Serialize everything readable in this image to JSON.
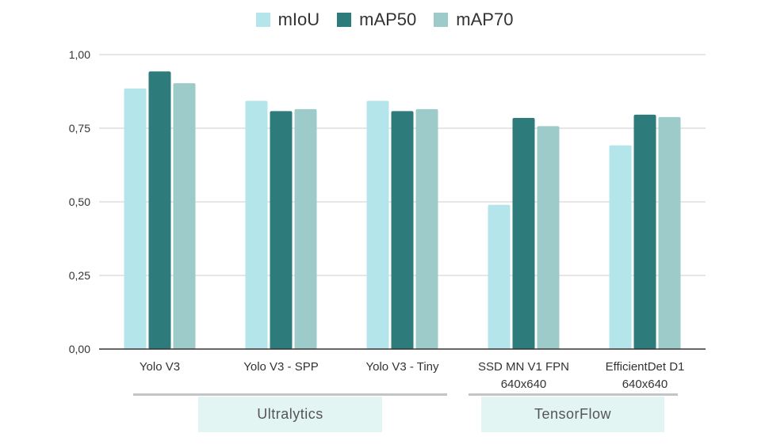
{
  "chart_data": {
    "type": "bar",
    "categories": [
      [
        "Yolo V3"
      ],
      [
        "Yolo V3 - SPP"
      ],
      [
        "Yolo V3 - Tiny"
      ],
      [
        "SSD MN V1 FPN",
        "640x640"
      ],
      [
        "EfficientDet D1",
        "640x640"
      ]
    ],
    "series": [
      {
        "name": "mIoU",
        "color": "#b3e5eb",
        "values": [
          0.885,
          0.843,
          0.843,
          0.49,
          0.692
        ]
      },
      {
        "name": "mAP50",
        "color": "#2d7b7b",
        "values": [
          0.943,
          0.808,
          0.808,
          0.785,
          0.796
        ]
      },
      {
        "name": "mAP70",
        "color": "#9ccbca",
        "values": [
          0.903,
          0.815,
          0.815,
          0.757,
          0.788
        ]
      }
    ],
    "ylim": [
      0,
      1
    ],
    "yticks": [
      "0,00",
      "0,25",
      "0,50",
      "0,75",
      "1,00"
    ],
    "ytick_values": [
      0,
      0.25,
      0.5,
      0.75,
      1.0
    ],
    "grid": true,
    "legend_position": "top-center",
    "groups": [
      {
        "label": "Ultralytics",
        "categories": [
          0,
          1,
          2
        ]
      },
      {
        "label": "TensorFlow",
        "categories": [
          3,
          4
        ]
      }
    ]
  },
  "group_box_color": "#e3f5f3"
}
